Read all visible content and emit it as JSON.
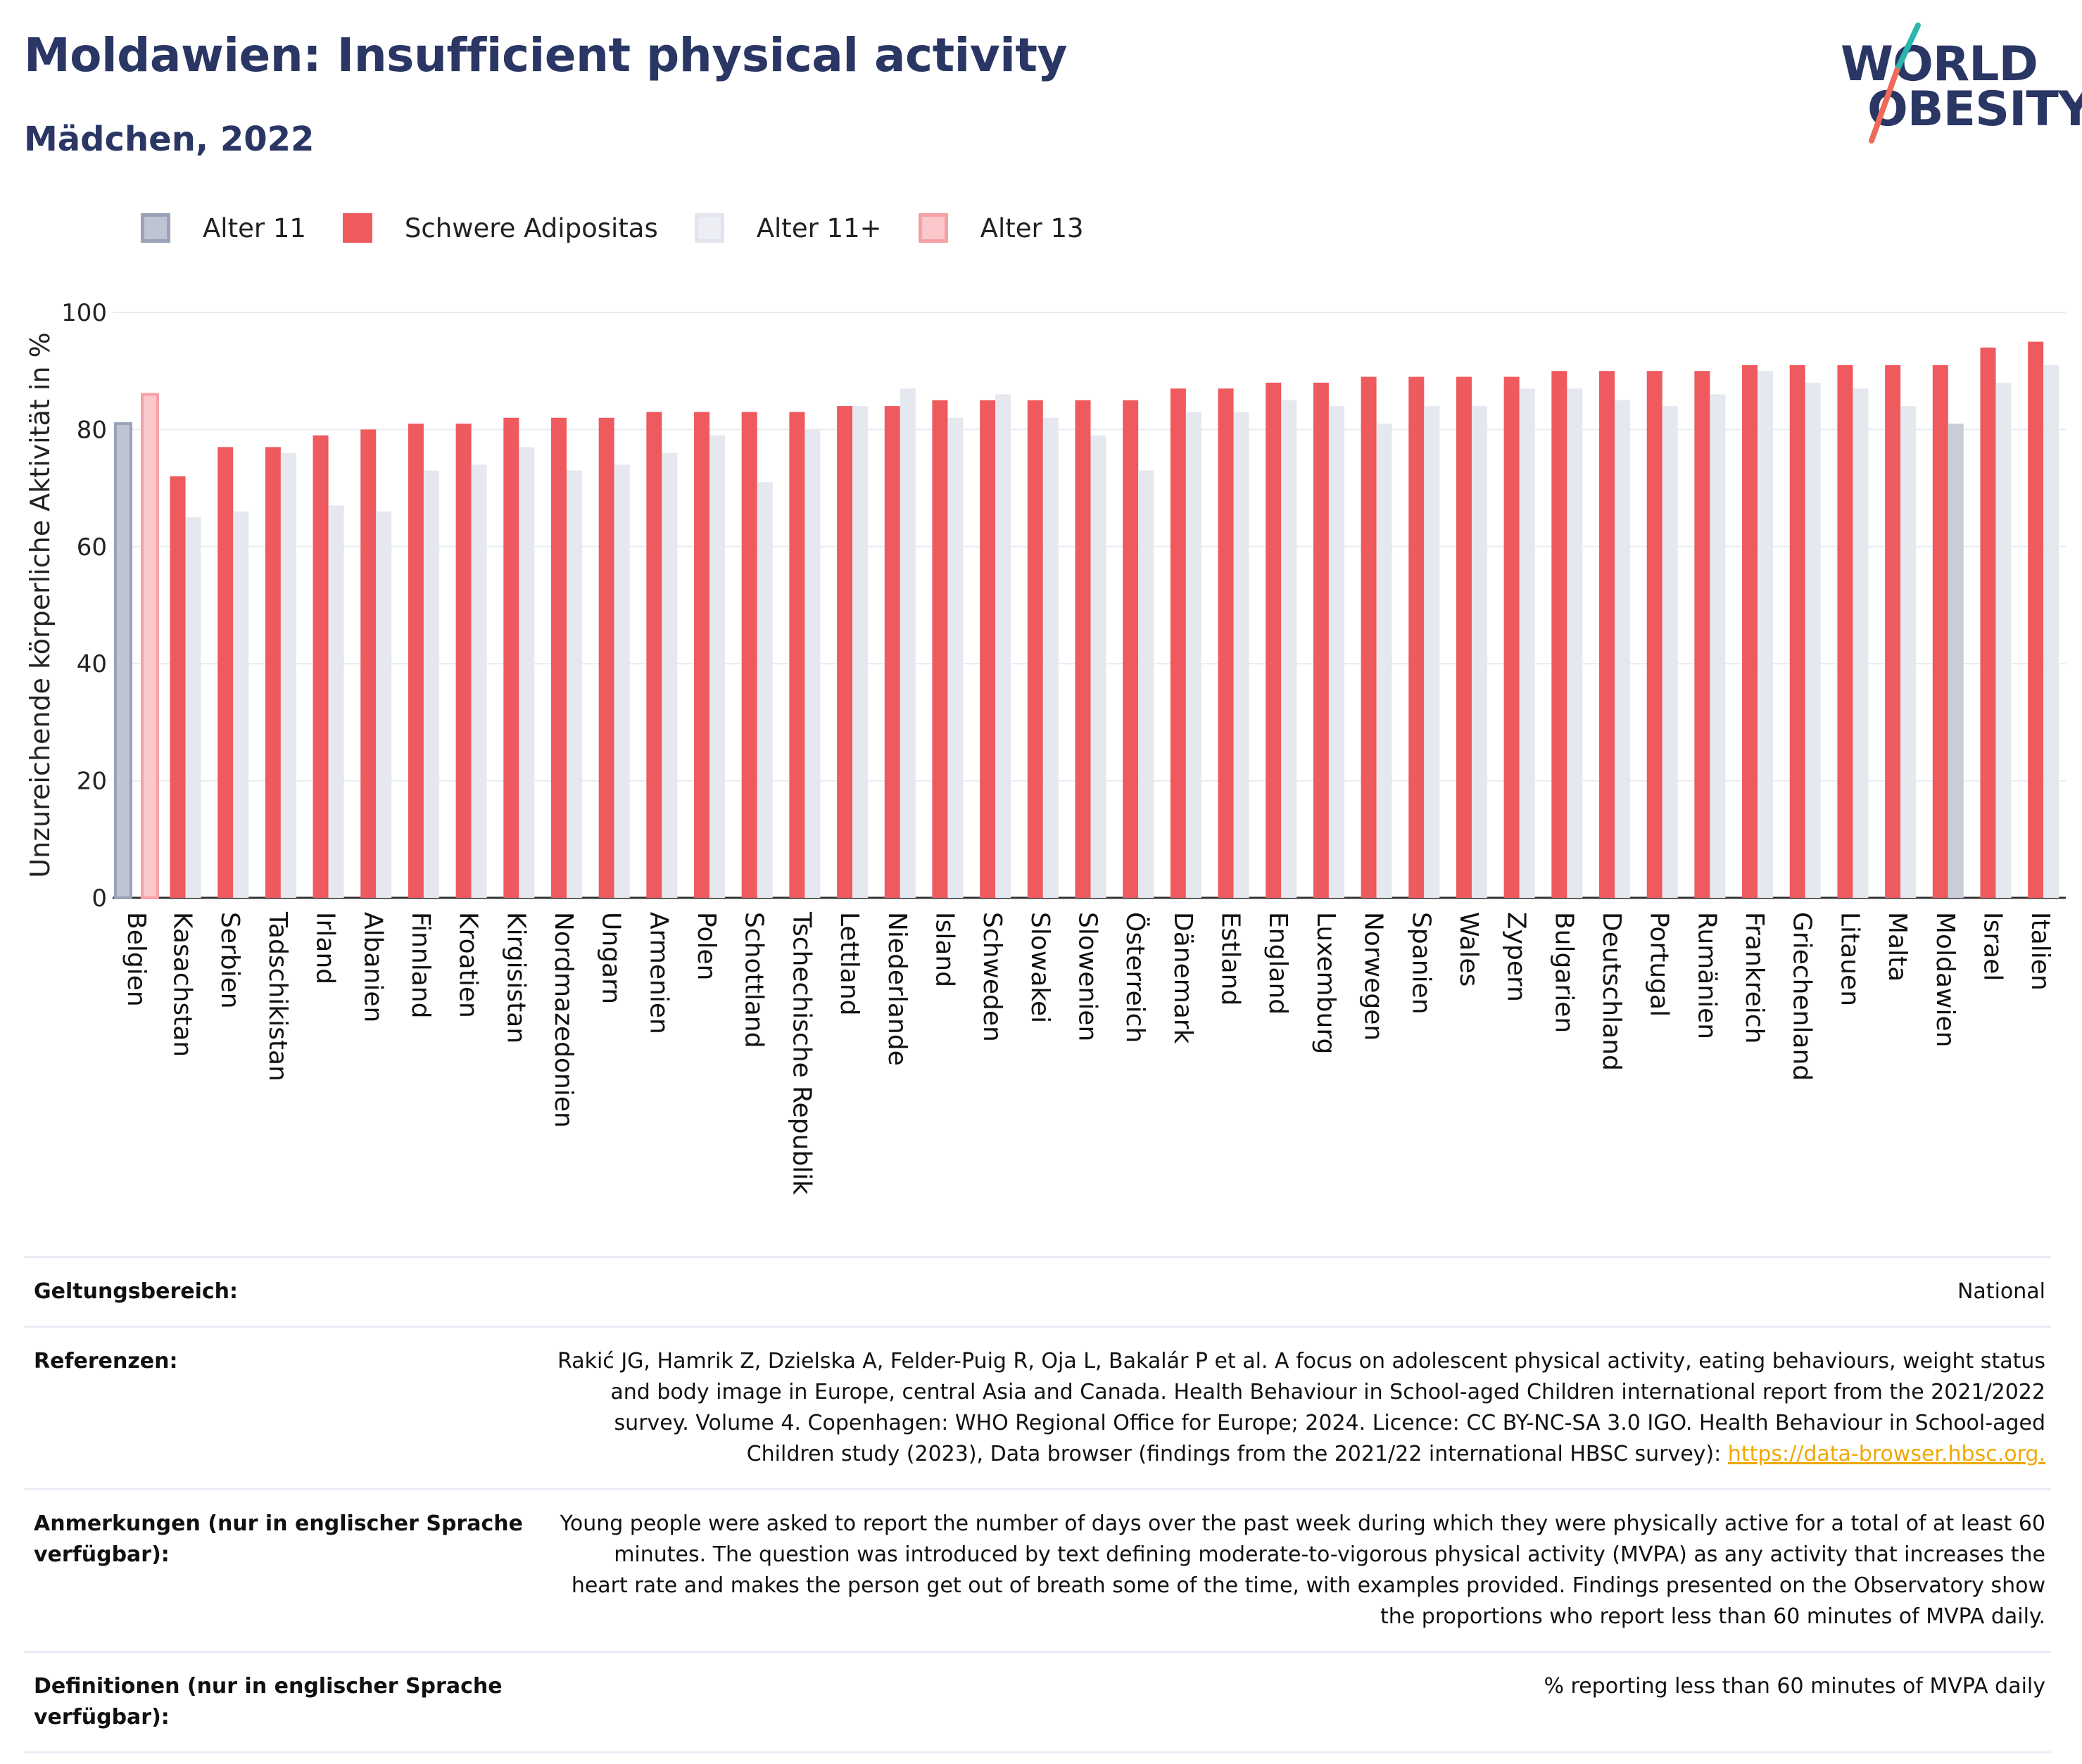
{
  "header": {
    "title": "Moldawien: Insufficient physical activity",
    "subtitle": "Mädchen, 2022"
  },
  "logo": {
    "line1": "WORLD",
    "line2": "OBESITY",
    "colors": {
      "text": "#2a3664",
      "slash_top": "#2bb5ad",
      "slash_bottom": "#ee6a5a"
    }
  },
  "legend": {
    "items": [
      {
        "label": "Alter 11",
        "fill": "#bfc4d4",
        "stroke": "#9aa1b8"
      },
      {
        "label": "Schwere Adipositas",
        "fill": "#ee5a5e",
        "stroke": "#ee5a5e"
      },
      {
        "label": "Alter 11+",
        "fill": "#eceef4",
        "stroke": "#e2e5ee"
      },
      {
        "label": "Alter 13",
        "fill": "#fbc7ca",
        "stroke": "#f6a1a6"
      }
    ]
  },
  "chart_data": {
    "type": "bar",
    "title": "Moldawien: Insufficient physical activity",
    "subtitle": "Mädchen, 2022",
    "xlabel": "",
    "ylabel": "Unzureichende körperliche Aktivität in %",
    "ylim": [
      0,
      100
    ],
    "yticks": [
      0,
      20,
      40,
      60,
      80,
      100
    ],
    "grid": true,
    "legend_position": "top-left",
    "categories": [
      "Belgien",
      "Kasachstan",
      "Serbien",
      "Tadschikistan",
      "Irland",
      "Albanien",
      "Finnland",
      "Kroatien",
      "Kirgisistan",
      "Nordmazedonien",
      "Ungarn",
      "Armenien",
      "Polen",
      "Schottland",
      "Tschechische Republik",
      "Lettland",
      "Niederlande",
      "Island",
      "Schweden",
      "Slowakei",
      "Slowenien",
      "Österreich",
      "Dänemark",
      "Estland",
      "England",
      "Luxemburg",
      "Norwegen",
      "Spanien",
      "Wales",
      "Zypern",
      "Bulgarien",
      "Deutschland",
      "Portugal",
      "Rumänien",
      "Frankreich",
      "Griechenland",
      "Litauen",
      "Malta",
      "Moldawien",
      "Israel",
      "Italien"
    ],
    "special": [
      {
        "category": "Belgien",
        "series": "Alter 11",
        "value": 81
      },
      {
        "category": "Belgien",
        "series": "Alter 13",
        "value": 86
      }
    ],
    "series": [
      {
        "name": "Schwere Adipositas",
        "color": "#ee5a5e",
        "values": [
          null,
          72,
          77,
          77,
          79,
          80,
          81,
          81,
          82,
          82,
          82,
          83,
          83,
          83,
          83,
          84,
          84,
          85,
          85,
          85,
          85,
          85,
          87,
          87,
          88,
          88,
          89,
          89,
          89,
          89,
          90,
          90,
          90,
          90,
          91,
          91,
          91,
          91,
          91,
          94,
          95
        ]
      },
      {
        "name": "Alter 11+",
        "color": "#e6e8f0",
        "values": [
          null,
          65,
          66,
          76,
          67,
          66,
          73,
          74,
          77,
          73,
          74,
          76,
          79,
          71,
          80,
          84,
          87,
          82,
          86,
          82,
          79,
          73,
          83,
          83,
          85,
          84,
          81,
          84,
          84,
          87,
          87,
          85,
          84,
          86,
          90,
          88,
          87,
          84,
          81,
          88,
          91
        ]
      }
    ],
    "highlight": {
      "category": "Moldawien",
      "color": "#c9cdd8"
    }
  },
  "meta": {
    "rows": [
      {
        "key": "Geltungsbereich:",
        "value": "National"
      },
      {
        "key": "Referenzen:",
        "value": "Rakić JG, Hamrik Z, Dzielska A, Felder-Puig R, Oja L, Bakalár P et al. A focus on adolescent physical activity, eating behaviours, weight status and body image in Europe, central Asia and Canada. Health Behaviour in School-aged Children international report from the 2021/2022 survey. Volume 4. Copenhagen: WHO Regional Office for Europe; 2024. Licence: CC BY-NC-SA 3.0 IGO. Health Behaviour in School-aged Children study (2023), Data browser (findings from the 2021/22 international HBSC survey):",
        "link": "https://data-browser.hbsc.org."
      },
      {
        "key": "Anmerkungen (nur in englischer Sprache verfügbar):",
        "value": "Young people were asked to report the number of days over the past week during which they were physically active for a total of at least 60 minutes. The question was introduced by text defining moderate-to-vigorous physical activity (MVPA) as any activity that increases the heart rate and makes the person get out of breath some of the time, with examples provided. Findings presented on the Observatory show the proportions who report less than 60 minutes of MVPA daily."
      },
      {
        "key": "Definitionen (nur in englischer Sprache verfügbar):",
        "value": "% reporting less than 60 minutes of MVPA daily"
      }
    ]
  }
}
